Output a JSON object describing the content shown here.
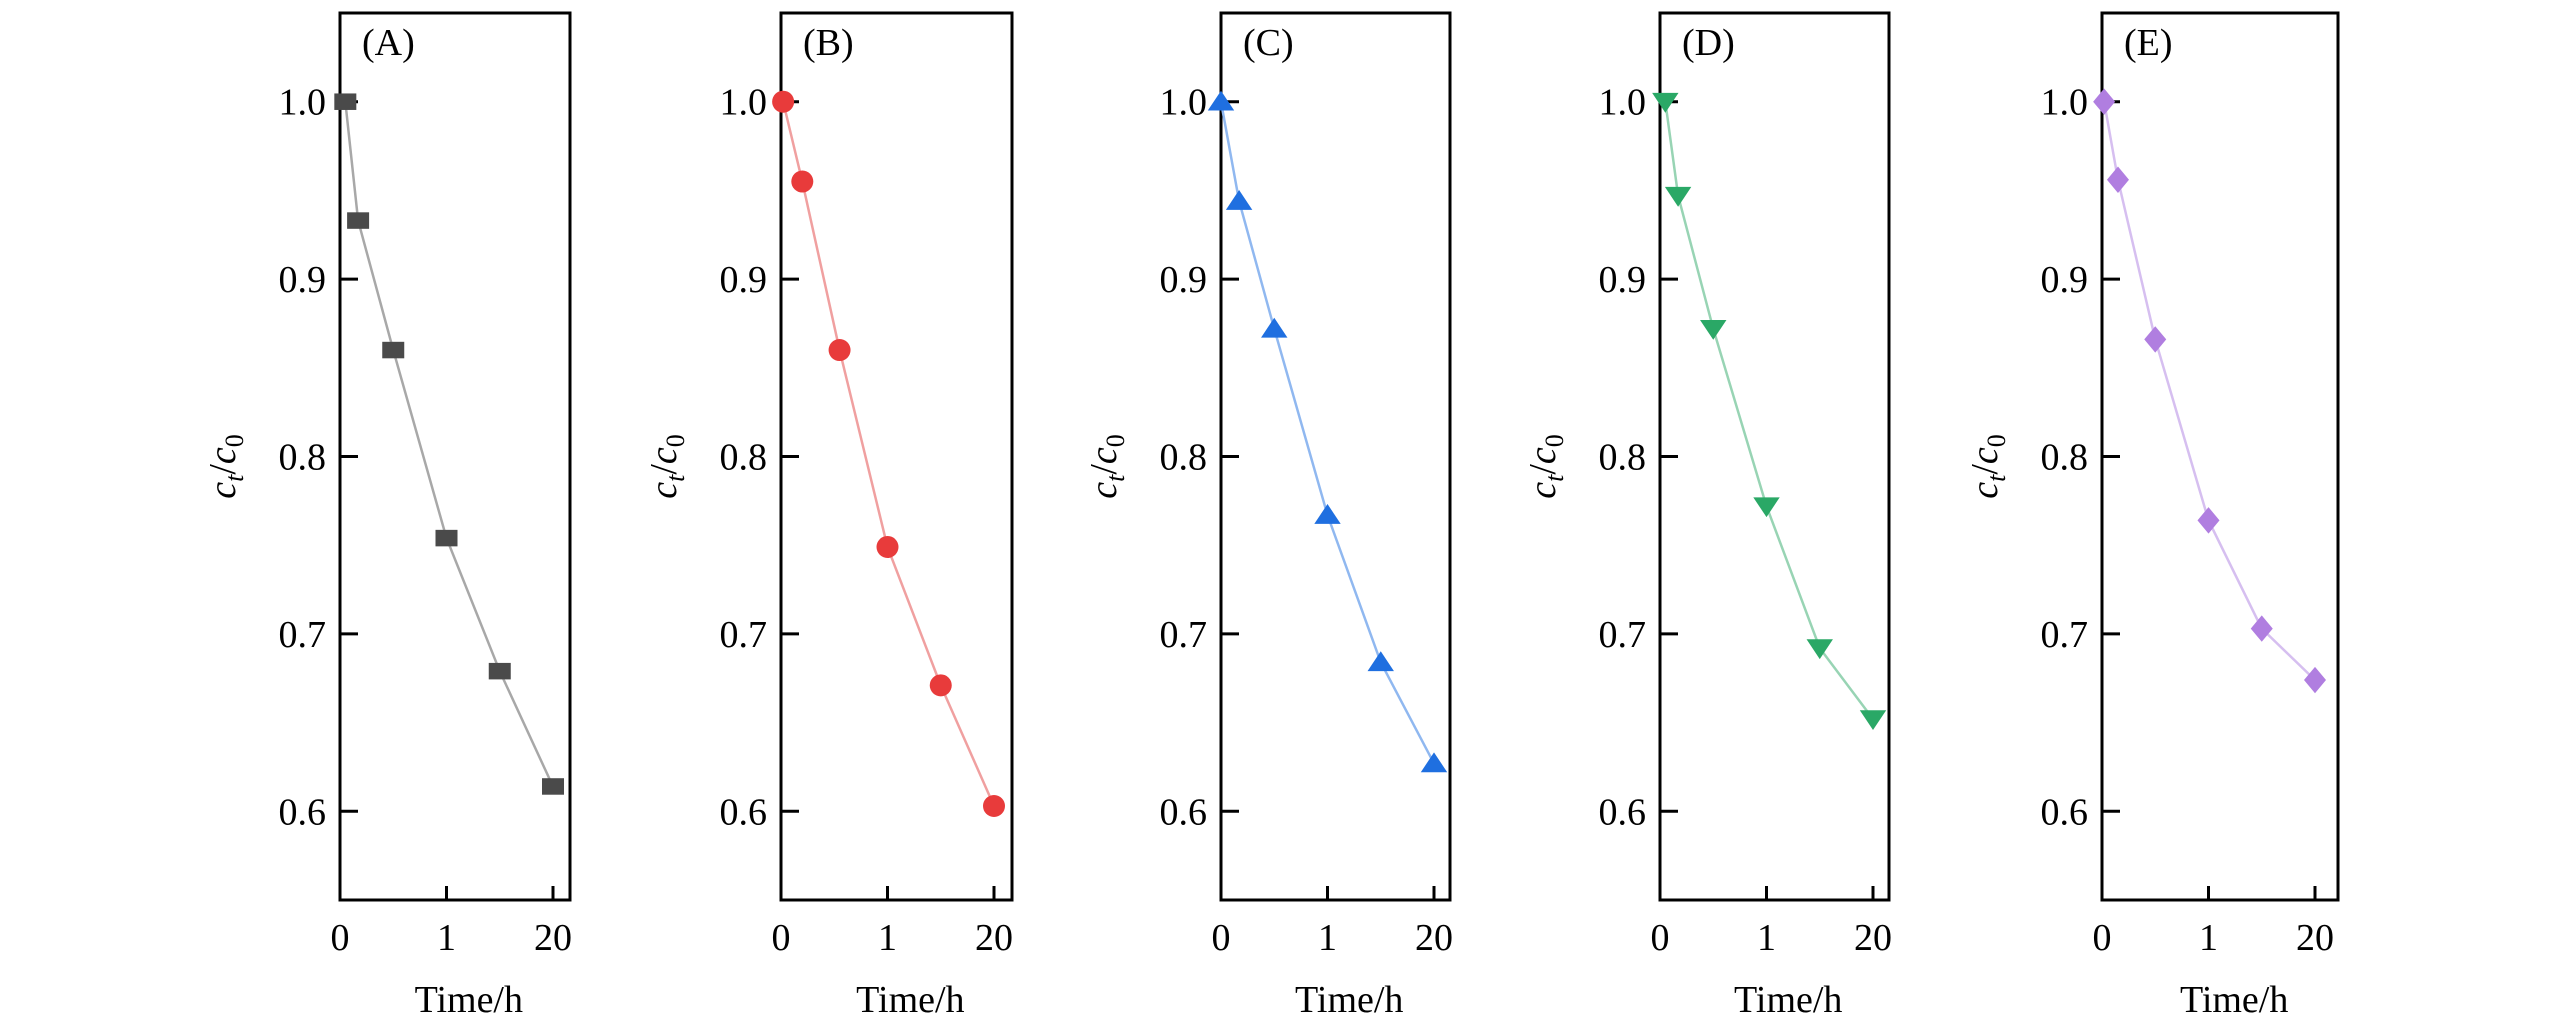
{
  "chart_data": [
    {
      "type": "line",
      "panel_label": "(A)",
      "xlabel": "Time/h",
      "ylabel_main": "c",
      "ylabel_sub_t": "t",
      "ylabel_sep": "/",
      "ylabel_sub_0": "0",
      "x_tick_labels": [
        "0",
        "1",
        "20"
      ],
      "x_tick_positions": [
        0,
        1,
        2
      ],
      "y_ticks": [
        "0.6",
        "0.7",
        "0.8",
        "0.9",
        "1.0"
      ],
      "ylim": [
        0.55,
        1.05
      ],
      "xlim": [
        0,
        2.2
      ],
      "marker": "square",
      "color": "#4a4a4a",
      "line_color": "#a8a8a8",
      "x": [
        0.05,
        0.17,
        0.5,
        1,
        1.5,
        2
      ],
      "values": [
        1.0,
        0.933,
        0.86,
        0.754,
        0.679,
        0.614
      ]
    },
    {
      "type": "line",
      "panel_label": "(B)",
      "xlabel": "Time/h",
      "ylabel_main": "c",
      "ylabel_sub_t": "t",
      "ylabel_sep": "/",
      "ylabel_sub_0": "0",
      "x_tick_labels": [
        "0",
        "1",
        "20"
      ],
      "x_tick_positions": [
        0,
        1,
        2
      ],
      "y_ticks": [
        "0.6",
        "0.7",
        "0.8",
        "0.9",
        "1.0"
      ],
      "ylim": [
        0.55,
        1.05
      ],
      "xlim": [
        0,
        2.2
      ],
      "marker": "circle",
      "color": "#e83b3b",
      "line_color": "#f0a0a0",
      "x": [
        0.02,
        0.2,
        0.55,
        1,
        1.5,
        2
      ],
      "values": [
        1.0,
        0.955,
        0.86,
        0.749,
        0.671,
        0.603
      ]
    },
    {
      "type": "line",
      "panel_label": "(C)",
      "xlabel": "Time/h",
      "ylabel_main": "c",
      "ylabel_sub_t": "t",
      "ylabel_sep": "/",
      "ylabel_sub_0": "0",
      "x_tick_labels": [
        "0",
        "1",
        "20"
      ],
      "x_tick_positions": [
        0,
        1,
        2
      ],
      "y_ticks": [
        "0.6",
        "0.7",
        "0.8",
        "0.9",
        "1.0"
      ],
      "ylim": [
        0.55,
        1.05
      ],
      "xlim": [
        0,
        2.2
      ],
      "marker": "triangle-up",
      "color": "#1f6fe0",
      "line_color": "#90b8f0",
      "x": [
        0.0,
        0.17,
        0.5,
        1,
        1.5,
        2
      ],
      "values": [
        1.0,
        0.944,
        0.872,
        0.767,
        0.684,
        0.627
      ]
    },
    {
      "type": "line",
      "panel_label": "(D)",
      "xlabel": "Time/h",
      "ylabel_main": "c",
      "ylabel_sub_t": "t",
      "ylabel_sep": "/",
      "ylabel_sub_0": "0",
      "x_tick_labels": [
        "0",
        "1",
        "20"
      ],
      "x_tick_positions": [
        0,
        1,
        2
      ],
      "y_ticks": [
        "0.6",
        "0.7",
        "0.8",
        "0.9",
        "1.0"
      ],
      "ylim": [
        0.55,
        1.05
      ],
      "xlim": [
        0,
        2.2
      ],
      "marker": "triangle-down",
      "color": "#2aa866",
      "line_color": "#98d4b4",
      "x": [
        0.05,
        0.17,
        0.5,
        1,
        1.5,
        2
      ],
      "values": [
        1.0,
        0.947,
        0.872,
        0.772,
        0.692,
        0.652
      ]
    },
    {
      "type": "line",
      "panel_label": "(E)",
      "xlabel": "Time/h",
      "ylabel_main": "c",
      "ylabel_sub_t": "t",
      "ylabel_sep": "/",
      "ylabel_sub_0": "0",
      "x_tick_labels": [
        "0",
        "1",
        "20"
      ],
      "x_tick_positions": [
        0,
        1,
        2
      ],
      "y_ticks": [
        "0.6",
        "0.7",
        "0.8",
        "0.9",
        "1.0"
      ],
      "ylim": [
        0.55,
        1.05
      ],
      "xlim": [
        0,
        2.2
      ],
      "marker": "diamond",
      "color": "#b07ee0",
      "line_color": "#d6bff0",
      "x": [
        0.02,
        0.15,
        0.5,
        1,
        1.5,
        2
      ],
      "values": [
        1.0,
        0.956,
        0.866,
        0.764,
        0.703,
        0.674
      ]
    }
  ]
}
